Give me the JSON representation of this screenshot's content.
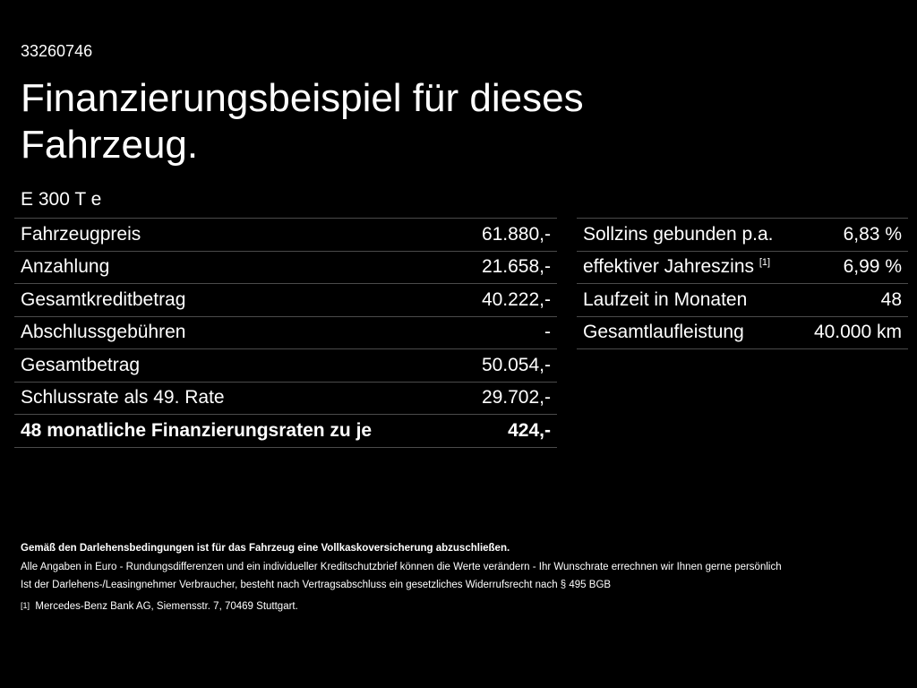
{
  "header": {
    "id": "33260746",
    "title_lines": [
      "Finanzierungsbeispiel für dieses",
      "Fahrzeug."
    ],
    "model": "E 300 T e"
  },
  "left_table": {
    "rows": [
      {
        "label": "Fahrzeugpreis",
        "value": "61.880,-"
      },
      {
        "label": "Anzahlung",
        "value": "21.658,-"
      },
      {
        "label": "Gesamtkreditbetrag",
        "value": "40.222,-"
      },
      {
        "label": "Abschlussgebühren",
        "value": "-"
      },
      {
        "label": "Gesamtbetrag",
        "value": "50.054,-"
      },
      {
        "label": "Schlussrate als 49. Rate",
        "value": "29.702,-"
      },
      {
        "label": "48 monatliche Finanzierungsraten zu je",
        "value": "424,-",
        "bold": true
      }
    ]
  },
  "right_table": {
    "rows": [
      {
        "label": "Sollzins gebunden p.a.",
        "value": "6,83 %"
      },
      {
        "label": "effektiver Jahreszins",
        "sup": "[1]",
        "value": "6,99 %"
      },
      {
        "label": "Laufzeit in Monaten",
        "value": "48"
      },
      {
        "label": "Gesamtlaufleistung",
        "value": "40.000 km"
      }
    ]
  },
  "footer": {
    "notes": [
      "Gemäß den Darlehensbedingungen ist für das Fahrzeug eine Vollkaskoversicherung abzuschließen.",
      "Alle Angaben in Euro - Rundungsdifferenzen und ein individueller Kreditschutzbrief können die Werte verändern - Ihr Wunschrate errechnen wir Ihnen gerne persönlich",
      "Ist der Darlehens-/Leasingnehmer Verbraucher, besteht nach Vertragsabschluss ein gesetzliches Widerrufsrecht nach § 495 BGB"
    ],
    "footnote": {
      "marker": "[1]",
      "text": "Mercedes-Benz Bank AG, Siemensstr. 7, 70469 Stuttgart."
    }
  }
}
